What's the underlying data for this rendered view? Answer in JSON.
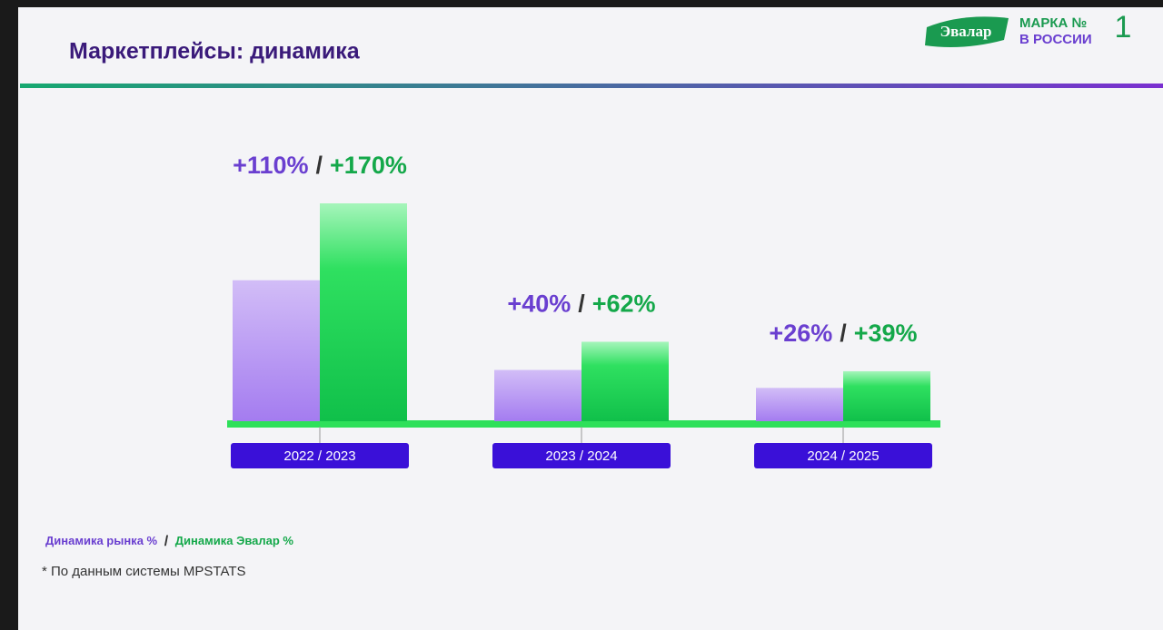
{
  "chart_data": {
    "type": "bar",
    "title": "Маркетплейсы: динамика",
    "logo": {
      "brand": "Эвалар",
      "line1": "МАРКА №",
      "line2": "В РОССИИ",
      "number": "1"
    },
    "categories": [
      "2022 / 2023",
      "2023 / 2024",
      "2024 / 2025"
    ],
    "series": [
      {
        "name": "Динамика рынка %",
        "color": "#6a3fd0",
        "values": [
          110,
          40,
          26
        ],
        "value_labels": [
          "+110%",
          "+40%",
          "+26%"
        ]
      },
      {
        "name": "Динамика Эвалар %",
        "color": "#14a84a",
        "values": [
          170,
          62,
          39
        ],
        "value_labels": [
          "+170%",
          "+62%",
          "+39%"
        ]
      }
    ],
    "separator": "/",
    "footnote": "* По данным системы MPSTATS"
  }
}
